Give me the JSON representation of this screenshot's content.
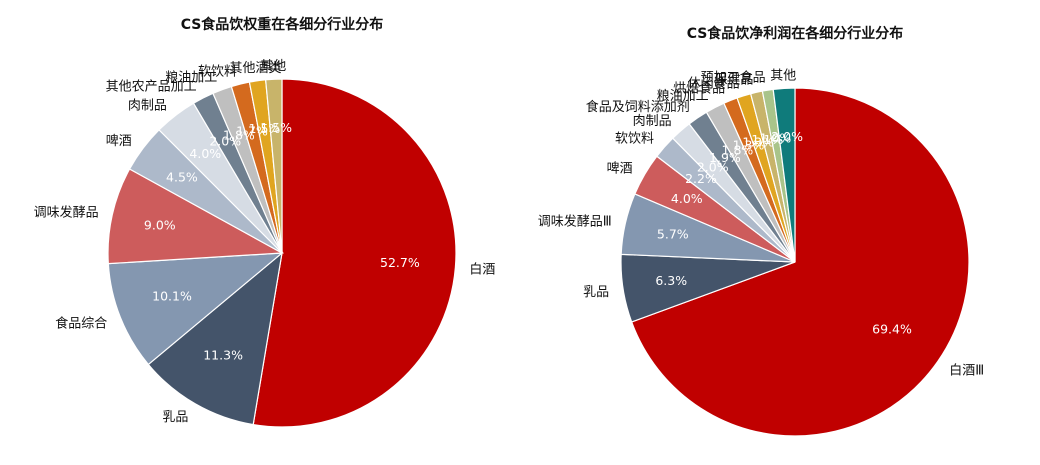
{
  "colors": {
    "red": "#c00000",
    "navy": "#44546a",
    "steel": "#8497b0",
    "salmon": "#cd5c5c",
    "grayblue": "#adb9ca",
    "light": "#d6dce4",
    "slate": "#708090",
    "silver": "#bfbfbf",
    "orange": "#d46a1e",
    "gold": "#e0a520",
    "khaki": "#c8b46a",
    "sage": "#a9c48a",
    "mint": "#8fbfa5",
    "teal": "#0f7b7b"
  },
  "chart_data": [
    {
      "type": "pie",
      "title": "CS食品饮权重在各细分行业分布",
      "slices": [
        {
          "label": "白酒",
          "value": 52.7,
          "value_label": "52.7%",
          "color": "#c00000"
        },
        {
          "label": "乳品",
          "value": 11.3,
          "value_label": "11.3%",
          "color": "#44546a"
        },
        {
          "label": "食品综合",
          "value": 10.1,
          "value_label": "10.1%",
          "color": "#8497b0"
        },
        {
          "label": "调味发酵品",
          "value": 9.0,
          "value_label": "9.0%",
          "color": "#cd5c5c"
        },
        {
          "label": "啤酒",
          "value": 4.5,
          "value_label": "4.5%",
          "color": "#adb9ca"
        },
        {
          "label": "肉制品",
          "value": 4.0,
          "value_label": "4.0%",
          "color": "#d6dce4"
        },
        {
          "label": "其他农产品加工",
          "value": 2.0,
          "value_label": "2.0%",
          "color": "#708090"
        },
        {
          "label": "粮油加工",
          "value": 1.8,
          "value_label": "1.8%",
          "color": "#bfbfbf"
        },
        {
          "label": "软饮料",
          "value": 1.7,
          "value_label": "1.7%",
          "color": "#d46a1e"
        },
        {
          "label": "其他酒类",
          "value": 1.5,
          "value_label": "1.5%",
          "color": "#e0a520"
        },
        {
          "label": "其他",
          "value": 1.5,
          "value_label": "1.5%",
          "color": "#c8b46a"
        }
      ]
    },
    {
      "type": "pie",
      "title": "CS食品饮净利润在各细分行业分布",
      "slices": [
        {
          "label": "白酒Ⅲ",
          "value": 69.4,
          "value_label": "69.4%",
          "color": "#c00000"
        },
        {
          "label": "乳品",
          "value": 6.3,
          "value_label": "6.3%",
          "color": "#44546a"
        },
        {
          "label": "调味发酵品Ⅲ",
          "value": 5.7,
          "value_label": "5.7%",
          "color": "#8497b0"
        },
        {
          "label": "啤酒",
          "value": 4.0,
          "value_label": "4.0%",
          "color": "#cd5c5c"
        },
        {
          "label": "软饮料",
          "value": 2.2,
          "value_label": "2.2%",
          "color": "#adb9ca"
        },
        {
          "label": "肉制品",
          "value": 2.0,
          "value_label": "2.0%",
          "color": "#d6dce4"
        },
        {
          "label": "食品及饲料添加剂",
          "value": 1.9,
          "value_label": "1.9%",
          "color": "#708090"
        },
        {
          "label": "粮油加工",
          "value": 1.8,
          "value_label": "1.8%",
          "color": "#bfbfbf"
        },
        {
          "label": "烘焙食品",
          "value": 1.3,
          "value_label": "1.3%",
          "color": "#d46a1e"
        },
        {
          "label": "休闲食品",
          "value": 1.3,
          "value_label": "1.3%",
          "color": "#e0a520"
        },
        {
          "label": "保健品",
          "value": 1.1,
          "value_label": "1.1%",
          "color": "#c8b46a"
        },
        {
          "label": "预加工食品",
          "value": 1.0,
          "value_label": "1.0%",
          "color": "#a9c48a"
        },
        {
          "label": "其他",
          "value": 2.0,
          "value_label": "2.0%",
          "color": "#0f7b7b"
        }
      ]
    }
  ]
}
